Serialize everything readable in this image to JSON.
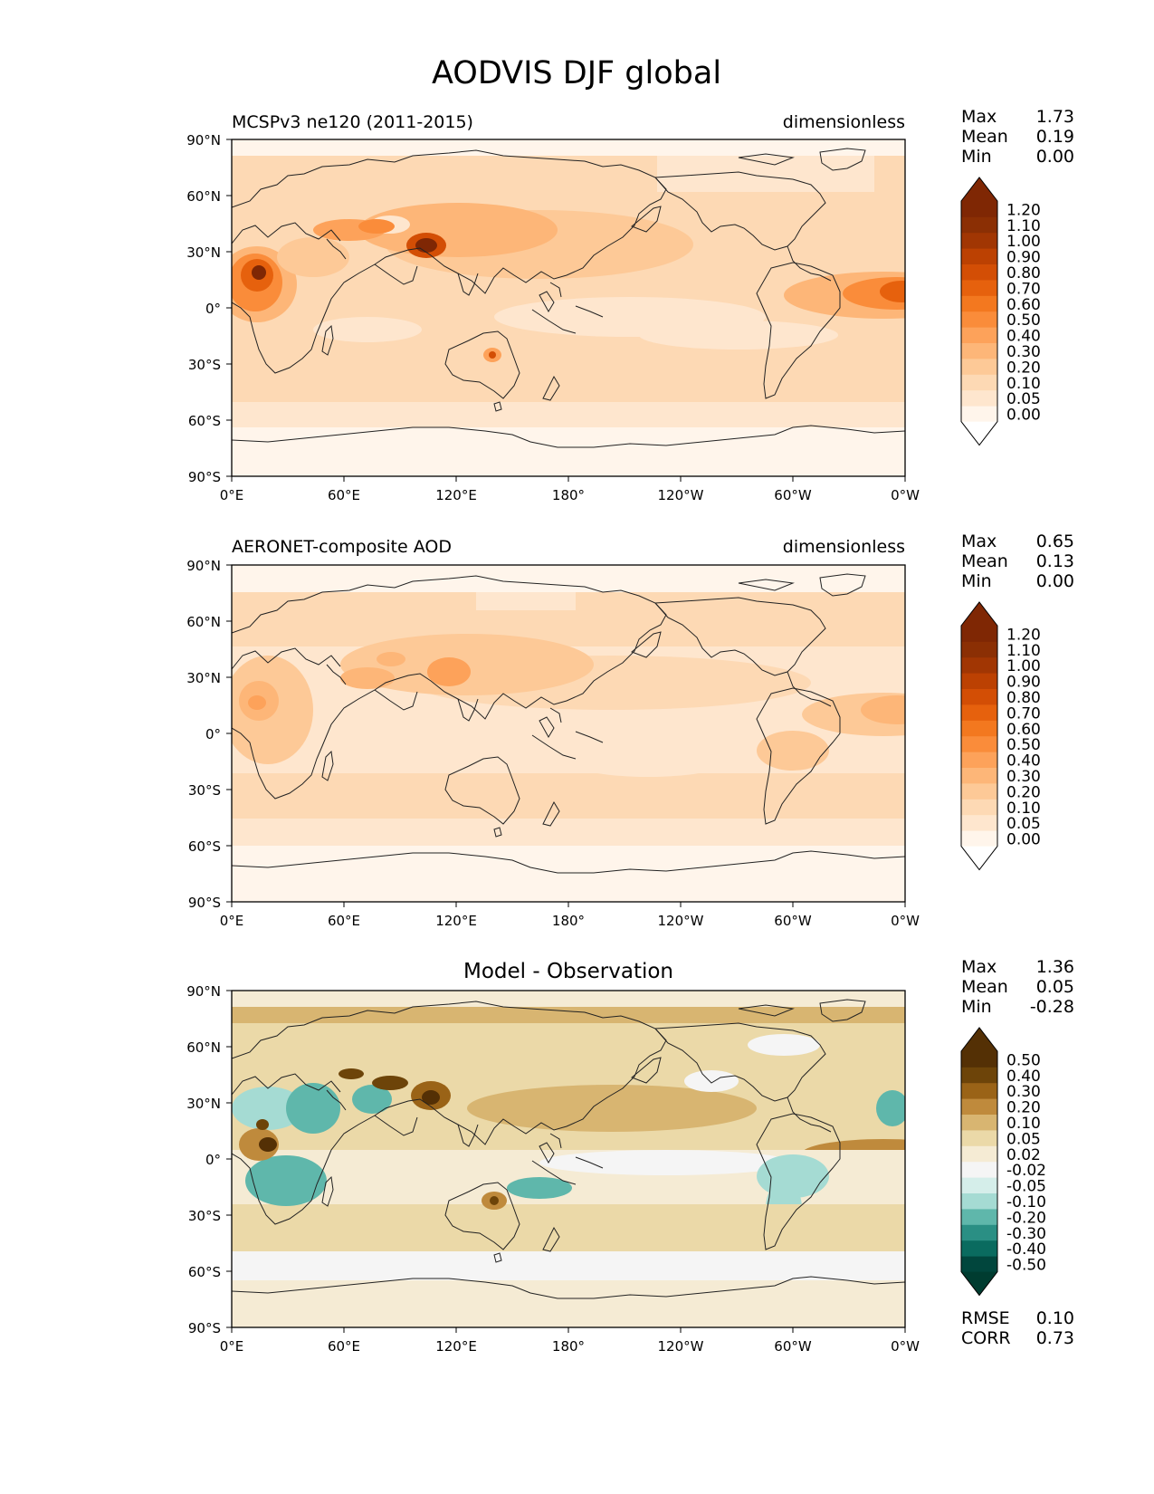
{
  "figure_title": "AODVIS DJF global",
  "lat_ticks": [
    "90°N",
    "60°N",
    "30°N",
    "0°",
    "30°S",
    "60°S",
    "90°S"
  ],
  "lon_ticks": [
    "0°E",
    "60°E",
    "120°E",
    "180°",
    "120°W",
    "60°W",
    "0°W"
  ],
  "panels": [
    {
      "title_left": "MCSPv3 ne120 (2011-2015)",
      "title_center": "",
      "title_right": "dimensionless",
      "stats": [
        {
          "label": "Max",
          "value": "1.73"
        },
        {
          "label": "Mean",
          "value": "0.19"
        },
        {
          "label": "Min",
          "value": "0.00"
        }
      ],
      "extra_stats": [],
      "colorbar_levels": [
        "0.00",
        "0.05",
        "0.10",
        "0.20",
        "0.30",
        "0.40",
        "0.50",
        "0.60",
        "0.70",
        "0.80",
        "0.90",
        "1.00",
        "1.10",
        "1.20"
      ],
      "colorbar_colors": [
        "#fff5eb",
        "#fee6ce",
        "#fdd9b4",
        "#fdc997",
        "#fdb678",
        "#fda25a",
        "#fa8c3a",
        "#f3781f",
        "#e6610d",
        "#d34e05",
        "#bc4102",
        "#a13603",
        "#8b2f04",
        "#7f2704"
      ],
      "colorbar_under": "#ffffff",
      "colorbar_over": "#7f2704"
    },
    {
      "title_left": "AERONET-composite AOD",
      "title_center": "",
      "title_right": "dimensionless",
      "stats": [
        {
          "label": "Max",
          "value": "0.65"
        },
        {
          "label": "Mean",
          "value": "0.13"
        },
        {
          "label": "Min",
          "value": "0.00"
        }
      ],
      "extra_stats": [],
      "colorbar_levels": [
        "0.00",
        "0.05",
        "0.10",
        "0.20",
        "0.30",
        "0.40",
        "0.50",
        "0.60",
        "0.70",
        "0.80",
        "0.90",
        "1.00",
        "1.10",
        "1.20"
      ],
      "colorbar_colors": [
        "#fff5eb",
        "#fee6ce",
        "#fdd9b4",
        "#fdc997",
        "#fdb678",
        "#fda25a",
        "#fa8c3a",
        "#f3781f",
        "#e6610d",
        "#d34e05",
        "#bc4102",
        "#a13603",
        "#8b2f04",
        "#7f2704"
      ],
      "colorbar_under": "#ffffff",
      "colorbar_over": "#7f2704"
    },
    {
      "title_left": "",
      "title_center": "Model - Observation",
      "title_right": "",
      "stats": [
        {
          "label": "Max",
          "value": "1.36"
        },
        {
          "label": "Mean",
          "value": "0.05"
        },
        {
          "label": "Min",
          "value": "-0.28"
        }
      ],
      "extra_stats": [
        {
          "label": "RMSE",
          "value": "0.10"
        },
        {
          "label": "CORR",
          "value": "0.73"
        }
      ],
      "colorbar_levels": [
        "-0.50",
        "-0.40",
        "-0.30",
        "-0.20",
        "-0.10",
        "-0.05",
        "-0.02",
        "0.02",
        "0.05",
        "0.10",
        "0.20",
        "0.30",
        "0.40",
        "0.50"
      ],
      "colorbar_colors": [
        "#01463d",
        "#0a6b5f",
        "#2a8f84",
        "#5fb7ab",
        "#a5dbd3",
        "#d5eeea",
        "#f5f5f5",
        "#f5ebd4",
        "#ebd9a8",
        "#d8b571",
        "#bf8a3c",
        "#9a6317",
        "#6d4409",
        "#543005"
      ],
      "colorbar_under": "#003c30",
      "colorbar_over": "#543005"
    }
  ]
}
